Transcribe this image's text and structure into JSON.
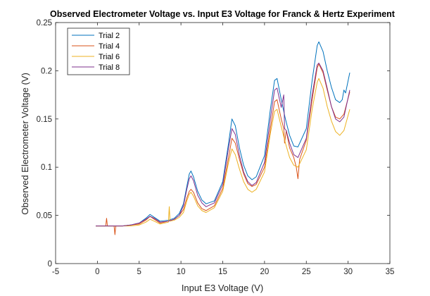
{
  "chart_data": {
    "type": "line",
    "title": "Observed Electrometer Voltage vs. Input E3 Voltage for Franck & Hertz Experiment",
    "xlabel": "Input E3 Voltage (V)",
    "ylabel": "Observed Electrometer Voltage (V)",
    "xlim": [
      -5,
      35
    ],
    "ylim": [
      0,
      0.25
    ],
    "xticks": [
      "-5",
      "0",
      "5",
      "10",
      "15",
      "20",
      "25",
      "30",
      "35"
    ],
    "yticks": [
      "0",
      "0.05",
      "0.1",
      "0.15",
      "0.2",
      "0.25"
    ],
    "grid": false,
    "legend_position": "top-left",
    "series": [
      {
        "name": "Trial 2",
        "color": "#0072BD",
        "points": [
          [
            -0.2,
            0.039
          ],
          [
            1,
            0.039
          ],
          [
            2,
            0.039
          ],
          [
            3,
            0.039
          ],
          [
            4,
            0.04
          ],
          [
            5,
            0.042
          ],
          [
            5.8,
            0.047
          ],
          [
            6.3,
            0.051
          ],
          [
            6.8,
            0.048
          ],
          [
            7.5,
            0.044
          ],
          [
            8.5,
            0.045
          ],
          [
            9.2,
            0.047
          ],
          [
            9.8,
            0.052
          ],
          [
            10.3,
            0.062
          ],
          [
            10.7,
            0.08
          ],
          [
            11.0,
            0.093
          ],
          [
            11.2,
            0.096
          ],
          [
            11.5,
            0.09
          ],
          [
            12.0,
            0.075
          ],
          [
            12.5,
            0.066
          ],
          [
            13.0,
            0.062
          ],
          [
            14.0,
            0.065
          ],
          [
            15.0,
            0.085
          ],
          [
            15.7,
            0.125
          ],
          [
            16.1,
            0.15
          ],
          [
            16.5,
            0.143
          ],
          [
            17.0,
            0.12
          ],
          [
            17.5,
            0.102
          ],
          [
            18.0,
            0.091
          ],
          [
            18.5,
            0.087
          ],
          [
            19.0,
            0.09
          ],
          [
            20.0,
            0.112
          ],
          [
            20.7,
            0.16
          ],
          [
            21.2,
            0.19
          ],
          [
            21.5,
            0.192
          ],
          [
            22.0,
            0.17
          ],
          [
            22.5,
            0.15
          ],
          [
            23.0,
            0.133
          ],
          [
            23.5,
            0.122
          ],
          [
            24.0,
            0.121
          ],
          [
            25.0,
            0.14
          ],
          [
            25.7,
            0.19
          ],
          [
            26.3,
            0.226
          ],
          [
            26.5,
            0.23
          ],
          [
            27.0,
            0.22
          ],
          [
            27.5,
            0.2
          ],
          [
            28.0,
            0.183
          ],
          [
            28.5,
            0.17
          ],
          [
            29.0,
            0.167
          ],
          [
            29.3,
            0.17
          ],
          [
            29.5,
            0.18
          ],
          [
            29.7,
            0.177
          ],
          [
            30.2,
            0.198
          ]
        ]
      },
      {
        "name": "Trial 4",
        "color": "#D95319",
        "points": [
          [
            -0.2,
            0.039
          ],
          [
            1,
            0.039
          ],
          [
            1.1,
            0.047
          ],
          [
            1.2,
            0.039
          ],
          [
            2,
            0.039
          ],
          [
            2.1,
            0.03
          ],
          [
            2.2,
            0.039
          ],
          [
            3,
            0.039
          ],
          [
            4,
            0.04
          ],
          [
            5,
            0.041
          ],
          [
            5.8,
            0.045
          ],
          [
            6.3,
            0.049
          ],
          [
            6.8,
            0.046
          ],
          [
            7.5,
            0.042
          ],
          [
            8.5,
            0.044
          ],
          [
            9.2,
            0.046
          ],
          [
            9.8,
            0.05
          ],
          [
            10.3,
            0.056
          ],
          [
            10.7,
            0.068
          ],
          [
            11.0,
            0.075
          ],
          [
            11.2,
            0.077
          ],
          [
            11.5,
            0.074
          ],
          [
            12.0,
            0.063
          ],
          [
            12.5,
            0.057
          ],
          [
            13.0,
            0.055
          ],
          [
            14.0,
            0.06
          ],
          [
            15.0,
            0.078
          ],
          [
            15.7,
            0.11
          ],
          [
            16.1,
            0.13
          ],
          [
            16.5,
            0.125
          ],
          [
            17.0,
            0.108
          ],
          [
            17.5,
            0.093
          ],
          [
            18.0,
            0.083
          ],
          [
            18.5,
            0.08
          ],
          [
            19.0,
            0.082
          ],
          [
            20.0,
            0.1
          ],
          [
            20.7,
            0.14
          ],
          [
            21.2,
            0.168
          ],
          [
            21.5,
            0.17
          ],
          [
            22.0,
            0.15
          ],
          [
            22.3,
            0.14
          ],
          [
            22.4,
            0.125
          ],
          [
            22.6,
            0.138
          ],
          [
            23.0,
            0.12
          ],
          [
            23.5,
            0.11
          ],
          [
            23.8,
            0.1
          ],
          [
            24.0,
            0.088
          ],
          [
            24.2,
            0.108
          ],
          [
            25.0,
            0.128
          ],
          [
            25.7,
            0.17
          ],
          [
            26.3,
            0.203
          ],
          [
            26.5,
            0.207
          ],
          [
            27.0,
            0.198
          ],
          [
            27.5,
            0.18
          ],
          [
            28.0,
            0.163
          ],
          [
            28.5,
            0.152
          ],
          [
            29.0,
            0.15
          ],
          [
            29.5,
            0.155
          ],
          [
            30.2,
            0.178
          ]
        ]
      },
      {
        "name": "Trial 6",
        "color": "#EDB120",
        "points": [
          [
            -0.2,
            0.039
          ],
          [
            1,
            0.039
          ],
          [
            2,
            0.039
          ],
          [
            3,
            0.039
          ],
          [
            4,
            0.039
          ],
          [
            5,
            0.04
          ],
          [
            5.8,
            0.043
          ],
          [
            6.3,
            0.046
          ],
          [
            6.8,
            0.044
          ],
          [
            7.5,
            0.041
          ],
          [
            8.5,
            0.043
          ],
          [
            8.6,
            0.059
          ],
          [
            8.7,
            0.044
          ],
          [
            9.2,
            0.045
          ],
          [
            9.8,
            0.048
          ],
          [
            10.3,
            0.053
          ],
          [
            10.7,
            0.065
          ],
          [
            11.0,
            0.072
          ],
          [
            11.2,
            0.074
          ],
          [
            11.5,
            0.07
          ],
          [
            12.0,
            0.06
          ],
          [
            12.5,
            0.055
          ],
          [
            13.0,
            0.053
          ],
          [
            14.0,
            0.058
          ],
          [
            15.0,
            0.075
          ],
          [
            15.7,
            0.105
          ],
          [
            16.1,
            0.119
          ],
          [
            16.5,
            0.113
          ],
          [
            17.0,
            0.098
          ],
          [
            17.5,
            0.085
          ],
          [
            18.0,
            0.077
          ],
          [
            18.5,
            0.074
          ],
          [
            19.0,
            0.077
          ],
          [
            20.0,
            0.095
          ],
          [
            20.7,
            0.135
          ],
          [
            21.2,
            0.158
          ],
          [
            21.5,
            0.16
          ],
          [
            22.0,
            0.142
          ],
          [
            22.5,
            0.125
          ],
          [
            23.0,
            0.11
          ],
          [
            23.5,
            0.102
          ],
          [
            24.0,
            0.1
          ],
          [
            25.0,
            0.118
          ],
          [
            25.7,
            0.16
          ],
          [
            26.3,
            0.188
          ],
          [
            26.5,
            0.192
          ],
          [
            27.0,
            0.182
          ],
          [
            27.5,
            0.163
          ],
          [
            28.0,
            0.148
          ],
          [
            28.5,
            0.137
          ],
          [
            29.0,
            0.133
          ],
          [
            29.5,
            0.138
          ],
          [
            30.2,
            0.16
          ]
        ]
      },
      {
        "name": "Trial 8",
        "color": "#7E2F8E",
        "points": [
          [
            -0.2,
            0.039
          ],
          [
            1,
            0.039
          ],
          [
            2,
            0.039
          ],
          [
            3,
            0.039
          ],
          [
            4,
            0.04
          ],
          [
            5,
            0.042
          ],
          [
            5.8,
            0.046
          ],
          [
            6.3,
            0.049
          ],
          [
            6.8,
            0.047
          ],
          [
            7.5,
            0.043
          ],
          [
            8.5,
            0.044
          ],
          [
            9.2,
            0.046
          ],
          [
            9.8,
            0.05
          ],
          [
            10.3,
            0.06
          ],
          [
            10.7,
            0.077
          ],
          [
            11.0,
            0.088
          ],
          [
            11.2,
            0.091
          ],
          [
            11.5,
            0.086
          ],
          [
            12.0,
            0.071
          ],
          [
            12.5,
            0.063
          ],
          [
            13.0,
            0.059
          ],
          [
            14.0,
            0.063
          ],
          [
            15.0,
            0.082
          ],
          [
            15.7,
            0.12
          ],
          [
            16.1,
            0.14
          ],
          [
            16.5,
            0.134
          ],
          [
            17.0,
            0.112
          ],
          [
            17.5,
            0.095
          ],
          [
            18.0,
            0.085
          ],
          [
            18.5,
            0.081
          ],
          [
            19.0,
            0.084
          ],
          [
            20.0,
            0.105
          ],
          [
            20.7,
            0.15
          ],
          [
            21.2,
            0.18
          ],
          [
            21.5,
            0.182
          ],
          [
            22.0,
            0.162
          ],
          [
            22.3,
            0.175
          ],
          [
            22.4,
            0.14
          ],
          [
            22.6,
            0.138
          ],
          [
            23.0,
            0.125
          ],
          [
            23.5,
            0.113
          ],
          [
            24.0,
            0.11
          ],
          [
            25.0,
            0.13
          ],
          [
            25.7,
            0.175
          ],
          [
            26.3,
            0.206
          ],
          [
            26.5,
            0.208
          ],
          [
            27.0,
            0.2
          ],
          [
            27.5,
            0.182
          ],
          [
            28.0,
            0.163
          ],
          [
            28.5,
            0.15
          ],
          [
            29.0,
            0.147
          ],
          [
            29.5,
            0.152
          ],
          [
            30.2,
            0.18
          ]
        ]
      }
    ]
  }
}
